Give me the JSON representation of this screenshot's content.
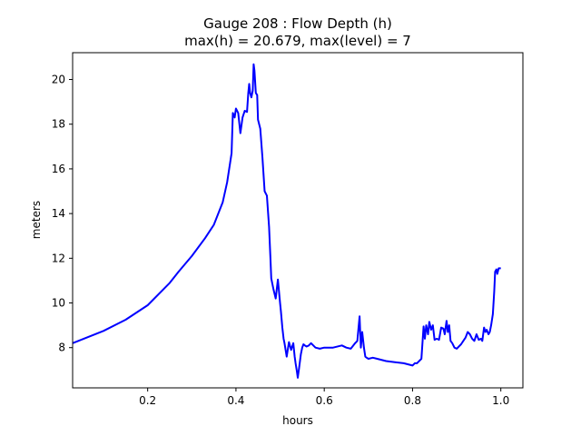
{
  "chart_data": {
    "type": "line",
    "title_line1": "Gauge 208 : Flow Depth (h)",
    "title_line2": "max(h) =  20.679,    max(level) = 7",
    "xlabel": "hours",
    "ylabel": "meters",
    "xlim": [
      0.03,
      1.05
    ],
    "ylim": [
      6.2,
      21.2
    ],
    "xticks": [
      0.2,
      0.4,
      0.6,
      0.8,
      1.0
    ],
    "xtick_labels": [
      "0.2",
      "0.4",
      "0.6",
      "0.8",
      "1.0"
    ],
    "yticks": [
      8,
      10,
      12,
      14,
      16,
      18,
      20
    ],
    "ytick_labels": [
      "8",
      "10",
      "12",
      "14",
      "16",
      "18",
      "20"
    ],
    "grid": false,
    "line_color": "#0000ff",
    "series": [
      {
        "x": [
          0.03,
          0.1,
          0.15,
          0.2,
          0.25,
          0.27,
          0.3,
          0.33,
          0.35,
          0.37,
          0.38,
          0.39,
          0.393,
          0.397,
          0.4,
          0.405,
          0.41,
          0.415,
          0.42,
          0.425,
          0.428,
          0.43,
          0.432,
          0.435,
          0.438,
          0.44,
          0.442,
          0.445,
          0.448,
          0.45,
          0.455,
          0.46,
          0.465,
          0.47,
          0.475,
          0.478,
          0.48,
          0.485,
          0.49,
          0.495,
          0.5,
          0.502,
          0.505,
          0.508,
          0.51,
          0.515,
          0.52,
          0.525,
          0.53,
          0.533,
          0.535,
          0.538,
          0.54,
          0.543,
          0.547,
          0.55,
          0.553,
          0.556,
          0.56,
          0.565,
          0.57,
          0.58,
          0.59,
          0.6,
          0.62,
          0.64,
          0.65,
          0.66,
          0.67,
          0.675,
          0.68,
          0.683,
          0.686,
          0.69,
          0.693,
          0.696,
          0.7,
          0.71,
          0.72,
          0.74,
          0.76,
          0.78,
          0.8,
          0.805,
          0.81,
          0.82,
          0.825,
          0.828,
          0.831,
          0.835,
          0.838,
          0.842,
          0.846,
          0.85,
          0.855,
          0.86,
          0.865,
          0.87,
          0.873,
          0.877,
          0.88,
          0.883,
          0.886,
          0.89,
          0.895,
          0.9,
          0.91,
          0.92,
          0.925,
          0.93,
          0.935,
          0.94,
          0.945,
          0.95,
          0.955,
          0.958,
          0.962,
          0.965,
          0.968,
          0.972,
          0.975,
          0.978,
          0.982,
          0.985,
          0.987,
          0.99,
          0.992,
          0.995,
          1.0
        ],
        "y": [
          8.2,
          8.75,
          9.25,
          9.9,
          10.9,
          11.4,
          12.1,
          12.9,
          13.5,
          14.5,
          15.4,
          16.7,
          18.5,
          18.3,
          18.7,
          18.5,
          17.6,
          18.3,
          18.6,
          18.55,
          19.4,
          19.8,
          19.4,
          19.2,
          19.5,
          20.68,
          20.4,
          19.4,
          19.3,
          18.2,
          17.8,
          16.5,
          15.0,
          14.8,
          13.4,
          12.0,
          11.1,
          10.6,
          10.2,
          11.05,
          10.0,
          9.6,
          8.9,
          8.4,
          8.2,
          7.6,
          8.25,
          7.9,
          8.2,
          7.6,
          7.3,
          6.95,
          6.65,
          7.1,
          7.7,
          8.0,
          8.15,
          8.1,
          8.05,
          8.1,
          8.2,
          8.0,
          7.95,
          8.0,
          8.0,
          8.1,
          8.0,
          7.95,
          8.2,
          8.3,
          9.4,
          8.0,
          8.7,
          8.0,
          7.6,
          7.55,
          7.5,
          7.55,
          7.5,
          7.4,
          7.35,
          7.3,
          7.2,
          7.3,
          7.3,
          7.5,
          8.95,
          8.4,
          9.0,
          8.6,
          9.15,
          8.8,
          9.0,
          8.35,
          8.4,
          8.35,
          8.9,
          8.85,
          8.6,
          9.2,
          8.7,
          9.0,
          8.3,
          8.2,
          8.0,
          7.95,
          8.15,
          8.45,
          8.7,
          8.6,
          8.4,
          8.3,
          8.6,
          8.35,
          8.4,
          8.3,
          8.9,
          8.7,
          8.8,
          8.6,
          8.7,
          9.0,
          9.5,
          10.5,
          11.4,
          11.5,
          11.3,
          11.55,
          11.55
        ]
      }
    ]
  }
}
